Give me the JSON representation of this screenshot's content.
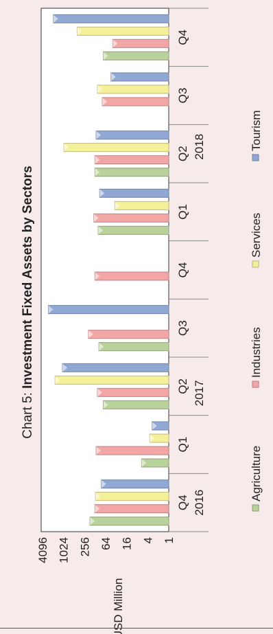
{
  "chart_data": {
    "type": "bar",
    "orientation": "horizontal, figure rotated 90° counter-clockwise",
    "title_prefix": "Chart 5: ",
    "title_main": "Investment Fixed Assets by Sectors",
    "ylabel": "USD Million",
    "yscale": "log2",
    "ylim": [
      1,
      4096
    ],
    "yticks": [
      "4096",
      "1024",
      "256",
      "64",
      "16",
      "4",
      "1"
    ],
    "year_labels": [
      {
        "text": "2016",
        "quarter_index": 0
      },
      {
        "text": "2017",
        "quarter_index": 2
      },
      {
        "text": "2018",
        "quarter_index": 6
      }
    ],
    "categories": [
      "Q4",
      "Q1",
      "Q2",
      "Q3",
      "Q4",
      "Q1",
      "Q2",
      "Q3",
      "Q4"
    ],
    "series": [
      {
        "name": "Agriculture",
        "color": "#b9d19a",
        "values": [
          180,
          6,
          75,
          100,
          null,
          105,
          130,
          null,
          75
        ]
      },
      {
        "name": "Industries",
        "color": "#f2a6a6",
        "values": [
          130,
          120,
          110,
          200,
          130,
          140,
          130,
          80,
          40
        ]
      },
      {
        "name": "Services",
        "color": "#f5f09a",
        "values": [
          125,
          3.5,
          1800,
          null,
          null,
          35,
          1000,
          110,
          420
        ]
      },
      {
        "name": "Tourism",
        "color": "#92a8d4",
        "values": [
          85,
          3,
          1100,
          2800,
          null,
          95,
          120,
          45,
          2000
        ]
      }
    ],
    "grid": false,
    "legend_position": "bottom"
  }
}
